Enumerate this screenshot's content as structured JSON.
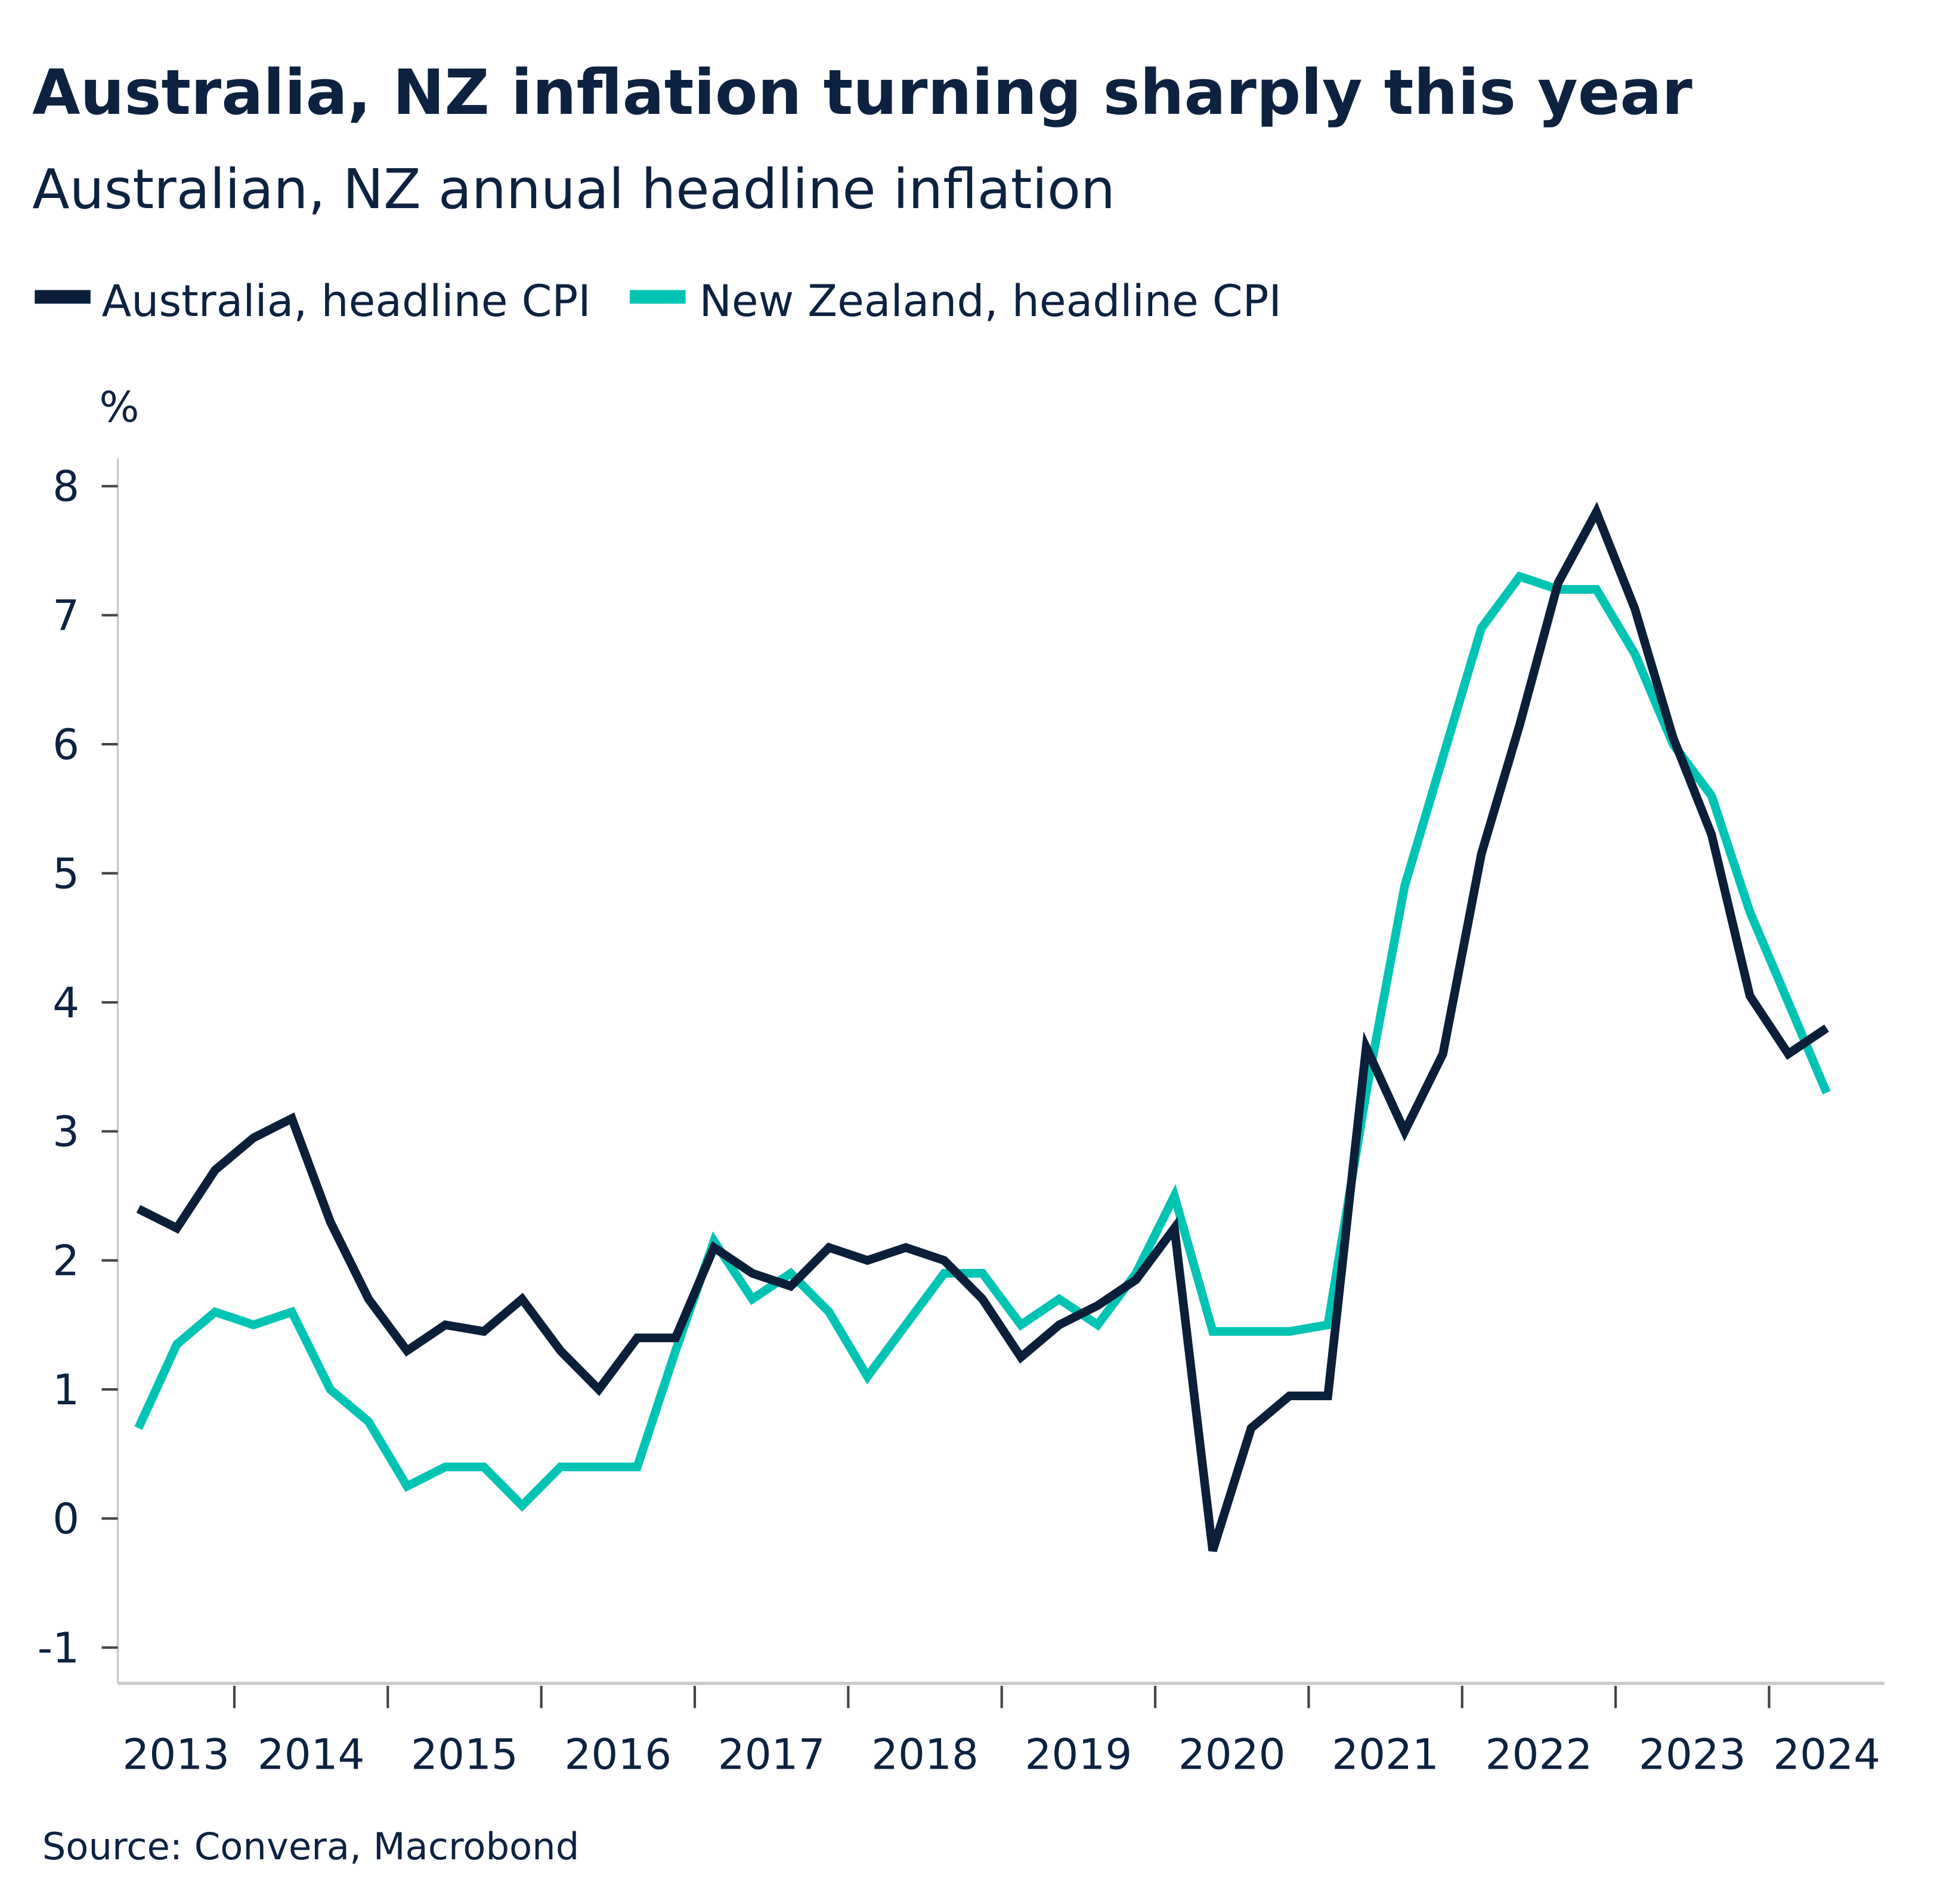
{
  "chart_data": {
    "type": "line",
    "title": "Australia, NZ inflation turning sharply this year",
    "subtitle": "Australian, NZ annual headline inflation",
    "ylabel": "%",
    "ylim": [
      -1.3,
      8.3
    ],
    "yticks": [
      -1,
      0,
      1,
      2,
      3,
      4,
      5,
      6,
      7,
      8
    ],
    "xticks": [
      "2013",
      "2014",
      "2015",
      "2016",
      "2017",
      "2018",
      "2019",
      "2020",
      "2021",
      "2022",
      "2023",
      "2024"
    ],
    "grid": false,
    "legend_placement": "top-left",
    "x_start": "2013-Q2",
    "x_frequency": "quarterly",
    "series": [
      {
        "name": "Australia, headline CPI",
        "color": "#0b1f3a",
        "values": [
          2.4,
          2.25,
          2.7,
          2.95,
          3.1,
          2.3,
          1.7,
          1.3,
          1.5,
          1.45,
          1.7,
          1.3,
          1.0,
          1.4,
          1.4,
          2.1,
          1.9,
          1.8,
          2.1,
          2.0,
          2.1,
          2.0,
          1.7,
          1.25,
          1.5,
          1.65,
          1.85,
          2.25,
          -0.25,
          0.7,
          0.95,
          0.95,
          3.65,
          3.0,
          3.6,
          5.15,
          6.15,
          7.25,
          7.8,
          7.05,
          6.05,
          5.3,
          4.05,
          3.6,
          3.8
        ]
      },
      {
        "name": "New Zealand, headline CPI",
        "color": "#00c4b3",
        "values": [
          0.7,
          1.35,
          1.6,
          1.5,
          1.6,
          1.0,
          0.75,
          0.25,
          0.4,
          0.4,
          0.1,
          0.4,
          0.4,
          0.4,
          1.3,
          2.15,
          1.7,
          1.9,
          1.6,
          1.1,
          1.5,
          1.9,
          1.9,
          1.5,
          1.7,
          1.5,
          1.9,
          2.5,
          1.45,
          1.45,
          1.45,
          1.5,
          3.3,
          4.9,
          5.9,
          6.9,
          7.3,
          7.2,
          7.2,
          6.7,
          6.0,
          5.6,
          4.7,
          4.0,
          3.3
        ]
      }
    ],
    "source": "Source: Convera, Macrobond"
  }
}
